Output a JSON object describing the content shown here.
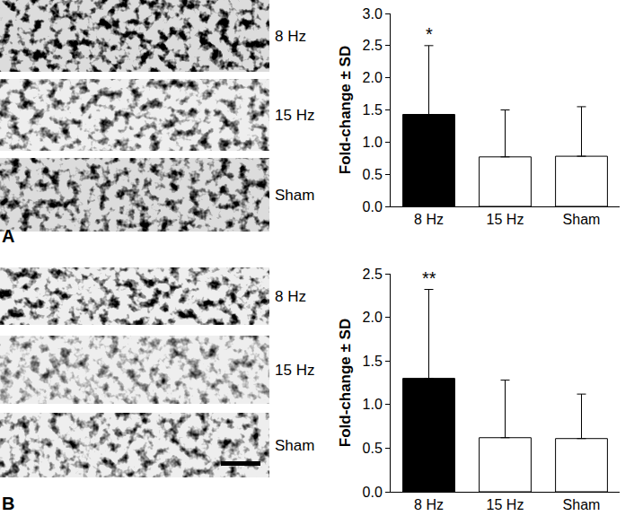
{
  "chart_data": [
    {
      "type": "bar",
      "categories": [
        "8 Hz",
        "15 Hz",
        "Sham"
      ],
      "values": [
        1.43,
        0.77,
        0.78
      ],
      "errors": [
        1.07,
        0.73,
        0.77
      ],
      "colors": [
        "#000000",
        "#ffffff",
        "#ffffff"
      ],
      "y_label": "Fold-change ± SD",
      "ylim": [
        0,
        3
      ],
      "yticks": [
        {
          "value": 0,
          "label": "0.0"
        },
        0.5,
        {
          "value": 1,
          "label": "1.0"
        },
        1.5,
        {
          "value": 2,
          "label": "2.0"
        },
        2.5,
        {
          "value": 3,
          "label": "3.0"
        }
      ],
      "grid": false,
      "annotations": [
        {
          "text": "*",
          "category": "8 Hz"
        }
      ]
    },
    {
      "type": "bar",
      "categories": [
        "8 Hz",
        "15 Hz",
        "Sham"
      ],
      "values": [
        1.3,
        0.62,
        0.61
      ],
      "errors": [
        1.02,
        0.66,
        0.51
      ],
      "colors": [
        "#000000",
        "#ffffff",
        "#ffffff"
      ],
      "y_label": "Fold-change ± SD",
      "ylim": [
        0,
        2.5
      ],
      "yticks": [
        {
          "value": 0,
          "label": "0.0"
        },
        0.5,
        {
          "value": 1,
          "label": "1.0"
        },
        1.5,
        {
          "value": 2,
          "label": "2.0"
        },
        2.5
      ],
      "grid": false,
      "annotations": [
        {
          "text": "**",
          "category": "8 Hz"
        }
      ]
    }
  ],
  "panels": [
    {
      "label": "A",
      "image_labels": [
        "8 Hz",
        "15 Hz",
        "Sham"
      ]
    },
    {
      "label": "B",
      "image_labels": [
        "8 Hz",
        "15 Hz",
        "Sham"
      ]
    }
  ]
}
